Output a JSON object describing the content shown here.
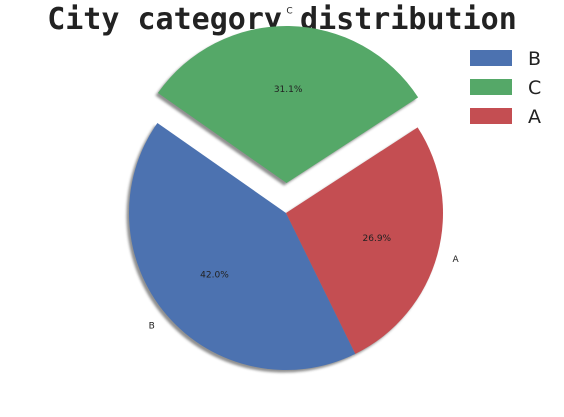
{
  "chart_data": {
    "type": "pie",
    "title": "City category distribution",
    "slices": [
      {
        "label": "B",
        "value": 42.0,
        "pct_label": "42.0%",
        "color": "#4c72b0",
        "exploded": false
      },
      {
        "label": "A",
        "value": 26.9,
        "pct_label": "26.9%",
        "color": "#c44e52",
        "exploded": false
      },
      {
        "label": "C",
        "value": 31.1,
        "pct_label": "31.1%",
        "color": "#55a868",
        "exploded": true
      }
    ],
    "start_angle_deg": 145,
    "direction": "counterclockwise",
    "shadow": true,
    "legend": {
      "placement": "top-right",
      "entries": [
        {
          "label": "B",
          "color": "#4c72b0"
        },
        {
          "label": "C",
          "color": "#55a868"
        },
        {
          "label": "A",
          "color": "#c44e52"
        }
      ]
    }
  }
}
